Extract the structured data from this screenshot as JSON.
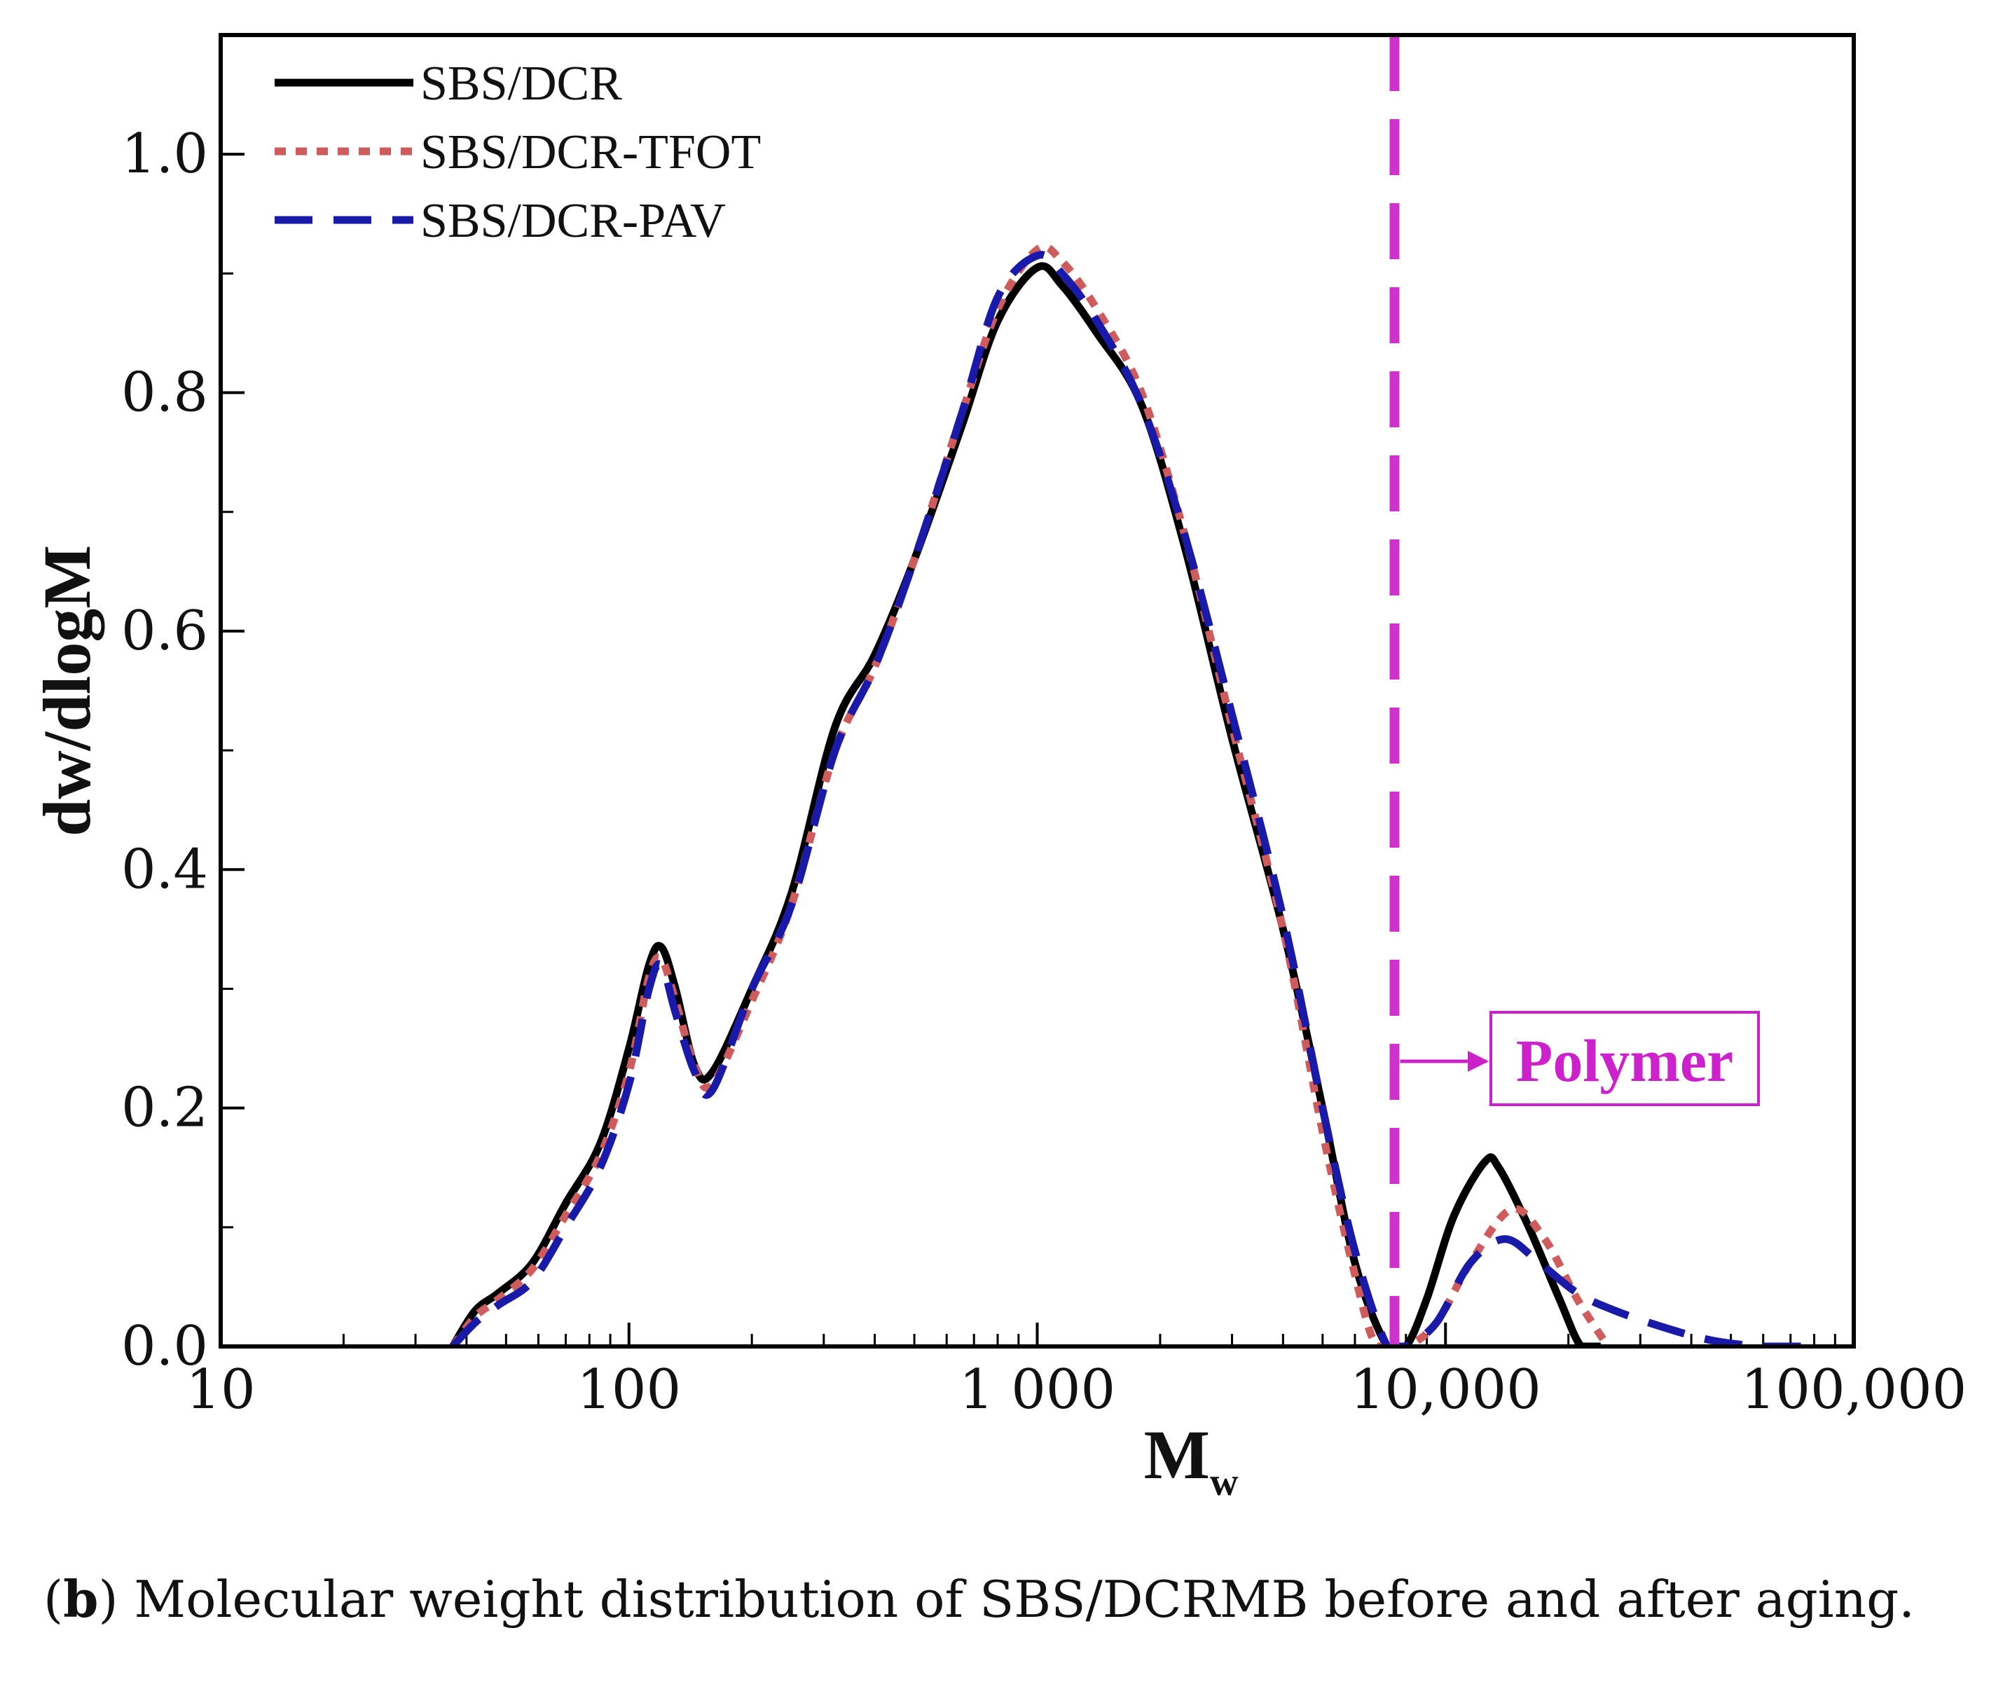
{
  "chart_data": {
    "type": "line",
    "xlabel": "M",
    "xlabel_subscript": "w",
    "ylabel": "dw/dlogM",
    "xscale": "log",
    "xlim": [
      10,
      100000
    ],
    "ylim": [
      0,
      1.1
    ],
    "x_ticks": [
      10,
      100,
      1000,
      10000,
      100000
    ],
    "x_tick_labels": [
      "10",
      "100",
      "1 000",
      "10,000",
      "100,000"
    ],
    "y_ticks": [
      0.0,
      0.2,
      0.4,
      0.6,
      0.8,
      1.0
    ],
    "y_tick_labels": [
      "0.0",
      "0.2",
      "0.4",
      "0.6",
      "0.8",
      "1.0"
    ],
    "legend_position": "top-left",
    "series": [
      {
        "name": "SBS/DCR",
        "color": "#000000",
        "style": "solid",
        "points": [
          [
            37,
            0
          ],
          [
            42,
            0.03
          ],
          [
            48,
            0.045
          ],
          [
            58,
            0.07
          ],
          [
            70,
            0.12
          ],
          [
            85,
            0.17
          ],
          [
            100,
            0.25
          ],
          [
            112,
            0.32
          ],
          [
            120,
            0.335
          ],
          [
            130,
            0.3
          ],
          [
            145,
            0.235
          ],
          [
            160,
            0.23
          ],
          [
            200,
            0.3
          ],
          [
            250,
            0.38
          ],
          [
            320,
            0.52
          ],
          [
            400,
            0.58
          ],
          [
            500,
            0.66
          ],
          [
            650,
            0.77
          ],
          [
            800,
            0.86
          ],
          [
            1000,
            0.905
          ],
          [
            1150,
            0.89
          ],
          [
            1400,
            0.85
          ],
          [
            1800,
            0.79
          ],
          [
            2300,
            0.67
          ],
          [
            3000,
            0.51
          ],
          [
            4000,
            0.35
          ],
          [
            5000,
            0.2
          ],
          [
            6000,
            0.07
          ],
          [
            7200,
            0
          ],
          [
            8000,
            0
          ],
          [
            9000,
            0.04
          ],
          [
            10500,
            0.11
          ],
          [
            12500,
            0.155
          ],
          [
            13500,
            0.15
          ],
          [
            16000,
            0.1
          ],
          [
            19000,
            0.04
          ],
          [
            21500,
            0
          ],
          [
            24000,
            0
          ]
        ]
      },
      {
        "name": "SBS/DCR-TFOT",
        "color": "#cf5c5c",
        "style": "dotted",
        "points": [
          [
            37,
            0
          ],
          [
            42,
            0.025
          ],
          [
            48,
            0.04
          ],
          [
            58,
            0.065
          ],
          [
            70,
            0.11
          ],
          [
            85,
            0.16
          ],
          [
            100,
            0.23
          ],
          [
            112,
            0.31
          ],
          [
            120,
            0.325
          ],
          [
            130,
            0.29
          ],
          [
            145,
            0.235
          ],
          [
            160,
            0.22
          ],
          [
            200,
            0.29
          ],
          [
            250,
            0.37
          ],
          [
            320,
            0.5
          ],
          [
            400,
            0.57
          ],
          [
            500,
            0.66
          ],
          [
            650,
            0.78
          ],
          [
            800,
            0.87
          ],
          [
            1000,
            0.92
          ],
          [
            1150,
            0.91
          ],
          [
            1400,
            0.87
          ],
          [
            1800,
            0.8
          ],
          [
            2300,
            0.68
          ],
          [
            3000,
            0.52
          ],
          [
            4000,
            0.35
          ],
          [
            5000,
            0.18
          ],
          [
            6000,
            0.06
          ],
          [
            6800,
            0
          ],
          [
            8000,
            0
          ],
          [
            9500,
            0.02
          ],
          [
            11500,
            0.07
          ],
          [
            14500,
            0.115
          ],
          [
            17500,
            0.09
          ],
          [
            21000,
            0.04
          ],
          [
            25000,
            0
          ]
        ]
      },
      {
        "name": "SBS/DCR-PAV",
        "color": "#1a1aa8",
        "style": "dashed",
        "points": [
          [
            37,
            0
          ],
          [
            42,
            0.02
          ],
          [
            48,
            0.035
          ],
          [
            58,
            0.055
          ],
          [
            70,
            0.1
          ],
          [
            85,
            0.15
          ],
          [
            100,
            0.22
          ],
          [
            112,
            0.3
          ],
          [
            120,
            0.32
          ],
          [
            130,
            0.28
          ],
          [
            145,
            0.23
          ],
          [
            160,
            0.215
          ],
          [
            200,
            0.3
          ],
          [
            250,
            0.37
          ],
          [
            320,
            0.5
          ],
          [
            400,
            0.57
          ],
          [
            500,
            0.66
          ],
          [
            650,
            0.78
          ],
          [
            800,
            0.88
          ],
          [
            1000,
            0.915
          ],
          [
            1150,
            0.9
          ],
          [
            1400,
            0.86
          ],
          [
            1800,
            0.79
          ],
          [
            2300,
            0.68
          ],
          [
            3000,
            0.53
          ],
          [
            4000,
            0.36
          ],
          [
            5000,
            0.2
          ],
          [
            6000,
            0.08
          ],
          [
            7200,
            0
          ],
          [
            8000,
            0
          ],
          [
            9500,
            0.02
          ],
          [
            11500,
            0.07
          ],
          [
            14000,
            0.09
          ],
          [
            17000,
            0.07
          ],
          [
            21000,
            0.045
          ],
          [
            26000,
            0.03
          ],
          [
            35000,
            0.015
          ],
          [
            45000,
            0.005
          ],
          [
            60000,
            0
          ],
          [
            80000,
            0
          ]
        ]
      }
    ],
    "threshold_line": {
      "x": 7500,
      "color": "#cc33cc",
      "style": "dashed"
    },
    "annotation": {
      "text": "Polymer",
      "color": "#cc22cc"
    }
  },
  "caption": {
    "label": "b",
    "text": "Molecular weight distribution of SBS/DCRMB before and after aging."
  }
}
